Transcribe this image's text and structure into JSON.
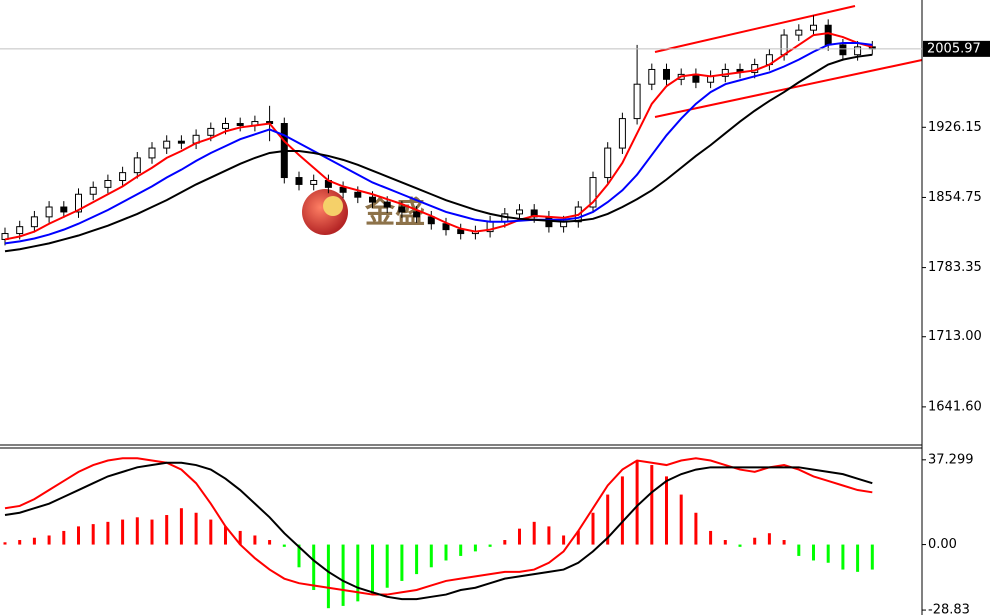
{
  "chart_data": [
    {
      "type": "candlestick",
      "watermark": "金盛",
      "ylim": [
        1602.8,
        2055.7
      ],
      "yticks": [
        {
          "value": 1641.6,
          "label": "1641.60"
        },
        {
          "value": 1713,
          "label": "1713.00"
        },
        1783.35,
        1854.75,
        1926.15
      ],
      "last_price": 2005.97,
      "colors": {
        "up": "#ffffff",
        "down": "#000000",
        "outline": "#000000"
      },
      "open": [
        1812,
        1818,
        1825,
        1835,
        1845,
        1840,
        1858,
        1865,
        1872,
        1880,
        1895,
        1905,
        1912,
        1910,
        1918,
        1925,
        1930,
        1928,
        1932,
        1930,
        1875,
        1868,
        1872,
        1865,
        1860,
        1855,
        1850,
        1845,
        1840,
        1835,
        1828,
        1822,
        1818,
        1820,
        1830,
        1838,
        1842,
        1835,
        1825,
        1830,
        1845,
        1875,
        1905,
        1935,
        1970,
        1985,
        1975,
        1980,
        1972,
        1978,
        1985,
        1982,
        1990,
        2000,
        2020,
        2025,
        2030,
        2010,
        2000,
        2008
      ],
      "high": [
        1824,
        1831,
        1841,
        1851,
        1851,
        1864,
        1871,
        1878,
        1886,
        1901,
        1911,
        1918,
        1918,
        1924,
        1931,
        1936,
        1936,
        1938,
        1948,
        1936,
        1881,
        1878,
        1878,
        1871,
        1866,
        1861,
        1856,
        1851,
        1846,
        1841,
        1834,
        1828,
        1826,
        1836,
        1844,
        1848,
        1848,
        1841,
        1836,
        1851,
        1881,
        1911,
        1941,
        2010,
        1991,
        1991,
        1986,
        1986,
        1984,
        1991,
        1991,
        1996,
        2006,
        2026,
        2031,
        2040,
        2036,
        2016,
        2014,
        2014
      ],
      "low": [
        1806,
        1812,
        1819,
        1829,
        1834,
        1834,
        1852,
        1859,
        1866,
        1874,
        1889,
        1899,
        1904,
        1904,
        1912,
        1919,
        1922,
        1922,
        1912,
        1869,
        1862,
        1862,
        1859,
        1854,
        1849,
        1844,
        1839,
        1834,
        1829,
        1822,
        1816,
        1812,
        1812,
        1814,
        1824,
        1832,
        1829,
        1819,
        1819,
        1824,
        1839,
        1869,
        1899,
        1929,
        1964,
        1969,
        1969,
        1966,
        1966,
        1972,
        1976,
        1976,
        1984,
        1994,
        2014,
        2019,
        2004,
        1994,
        1994,
        2000
      ],
      "close": [
        1818,
        1825,
        1835,
        1845,
        1840,
        1858,
        1865,
        1872,
        1880,
        1895,
        1905,
        1912,
        1910,
        1918,
        1925,
        1930,
        1928,
        1932,
        1930,
        1875,
        1868,
        1872,
        1865,
        1860,
        1855,
        1850,
        1845,
        1840,
        1835,
        1828,
        1822,
        1818,
        1820,
        1830,
        1838,
        1842,
        1835,
        1825,
        1830,
        1845,
        1875,
        1905,
        1935,
        1970,
        1985,
        1975,
        1980,
        1972,
        1978,
        1985,
        1982,
        1990,
        2000,
        2020,
        2025,
        2030,
        2010,
        2000,
        2008,
        2006
      ],
      "series": [
        {
          "color": "#ff0000",
          "values": [
            1812,
            1815,
            1820,
            1828,
            1835,
            1842,
            1850,
            1858,
            1866,
            1876,
            1885,
            1895,
            1902,
            1910,
            1915,
            1922,
            1926,
            1928,
            1930,
            1912,
            1898,
            1885,
            1872,
            1866,
            1862,
            1858,
            1853,
            1848,
            1842,
            1836,
            1829,
            1823,
            1820,
            1822,
            1826,
            1832,
            1836,
            1835,
            1834,
            1837,
            1850,
            1868,
            1890,
            1920,
            1950,
            1968,
            1978,
            1980,
            1978,
            1980,
            1982,
            1984,
            1990,
            2000,
            2010,
            2020,
            2022,
            2018,
            2012,
            2008
          ]
        },
        {
          "color": "#0000ff",
          "values": [
            1808,
            1810,
            1813,
            1817,
            1822,
            1828,
            1835,
            1842,
            1850,
            1858,
            1866,
            1875,
            1883,
            1892,
            1900,
            1907,
            1914,
            1919,
            1924,
            1918,
            1910,
            1902,
            1894,
            1886,
            1878,
            1870,
            1864,
            1858,
            1852,
            1846,
            1840,
            1836,
            1832,
            1830,
            1830,
            1831,
            1832,
            1832,
            1832,
            1834,
            1840,
            1850,
            1862,
            1878,
            1898,
            1918,
            1935,
            1950,
            1962,
            1970,
            1974,
            1978,
            1982,
            1988,
            1995,
            2003,
            2010,
            2012,
            2012,
            2010
          ]
        },
        {
          "color": "#000000",
          "values": [
            1800,
            1802,
            1805,
            1808,
            1812,
            1816,
            1821,
            1826,
            1832,
            1838,
            1845,
            1852,
            1860,
            1868,
            1875,
            1882,
            1889,
            1895,
            1900,
            1902,
            1902,
            1900,
            1897,
            1893,
            1888,
            1882,
            1876,
            1870,
            1864,
            1858,
            1852,
            1847,
            1842,
            1838,
            1835,
            1833,
            1832,
            1831,
            1830,
            1831,
            1833,
            1838,
            1845,
            1853,
            1862,
            1873,
            1885,
            1897,
            1908,
            1920,
            1932,
            1943,
            1953,
            1962,
            1972,
            1981,
            1990,
            1995,
            1998,
            2000
          ]
        }
      ]
    },
    {
      "type": "macd",
      "ylim": [
        -31,
        42.5
      ],
      "yticks": [
        37.299,
        {
          "value": 0,
          "label": "0.00"
        },
        -28.83
      ],
      "colors": {
        "up": "#ff0000",
        "down": "#00ff00"
      },
      "values": [
        1,
        2,
        3,
        4,
        6,
        8,
        9,
        10,
        11,
        12,
        11,
        13,
        16,
        14,
        11,
        8,
        6,
        4,
        2,
        -1,
        -10,
        -20,
        -28,
        -27,
        -25,
        -22,
        -19,
        -16,
        -13,
        -10,
        -7,
        -5,
        -3,
        -1,
        2,
        7,
        10,
        8,
        4,
        6,
        14,
        22,
        30,
        37,
        35,
        30,
        22,
        14,
        6,
        2,
        -1,
        3,
        5,
        2,
        -5,
        -7,
        -8,
        -11,
        -12,
        -11
      ],
      "series": [
        {
          "color": "#ff0000",
          "values": [
            16,
            17,
            20,
            24,
            28,
            32,
            35,
            37,
            38,
            38,
            37,
            36,
            33,
            27,
            18,
            8,
            0,
            -6,
            -11,
            -15,
            -17,
            -18,
            -19,
            -20,
            -21,
            -22,
            -22,
            -21,
            -20,
            -18,
            -16,
            -15,
            -14,
            -13,
            -12,
            -12,
            -11,
            -8,
            -3,
            6,
            16,
            26,
            33,
            37,
            36,
            35,
            37,
            38,
            37,
            35,
            33,
            32,
            34,
            35,
            33,
            30,
            28,
            26,
            24,
            23
          ]
        },
        {
          "color": "#000000",
          "values": [
            13,
            14,
            16,
            18,
            21,
            24,
            27,
            30,
            32,
            34,
            35,
            36,
            36,
            35,
            33,
            29,
            24,
            18,
            12,
            5,
            -1,
            -7,
            -12,
            -16,
            -19,
            -21,
            -23,
            -24,
            -24,
            -23,
            -22,
            -20,
            -19,
            -17,
            -15,
            -14,
            -13,
            -12,
            -11,
            -8,
            -3,
            3,
            10,
            17,
            23,
            28,
            31,
            33,
            34,
            34,
            34,
            34,
            34,
            34,
            34,
            33,
            32,
            31,
            29,
            27
          ]
        }
      ]
    }
  ]
}
